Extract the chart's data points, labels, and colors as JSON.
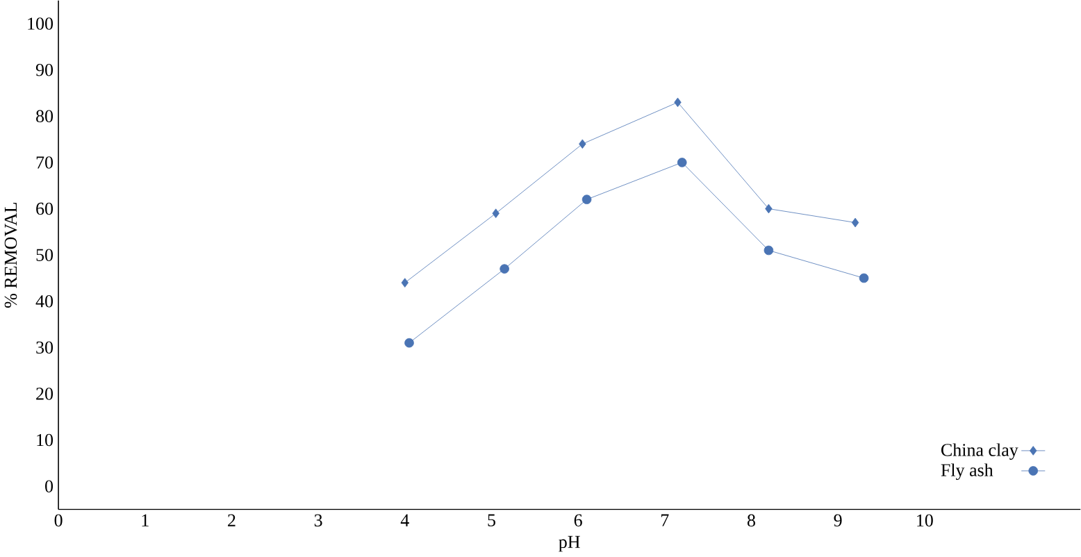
{
  "chart_data": {
    "type": "line",
    "xlabel": "pH",
    "ylabel": "% REMOVAL",
    "xlim": [
      0,
      11.8
    ],
    "xticks": [
      0,
      1,
      2,
      3,
      4,
      5,
      6,
      7,
      8,
      9,
      10
    ],
    "ylim": [
      -5,
      105
    ],
    "yticks": [
      0,
      10,
      20,
      30,
      40,
      50,
      60,
      70,
      80,
      90,
      100
    ],
    "legend": "bottom right",
    "grid": false,
    "series": [
      {
        "name": "China clay",
        "color": "#4a74b4",
        "marker": "diamond",
        "x": [
          4,
          5.05,
          6.05,
          7.15,
          8.2,
          9.2
        ],
        "values": [
          44,
          59,
          74,
          83,
          60,
          57
        ]
      },
      {
        "name": "Fly ash",
        "color": "#4a74b4",
        "marker": "circle",
        "x": [
          4.05,
          5.15,
          6.1,
          7.2,
          8.2,
          9.3
        ],
        "values": [
          31,
          47,
          62,
          70,
          51,
          45
        ]
      }
    ]
  }
}
